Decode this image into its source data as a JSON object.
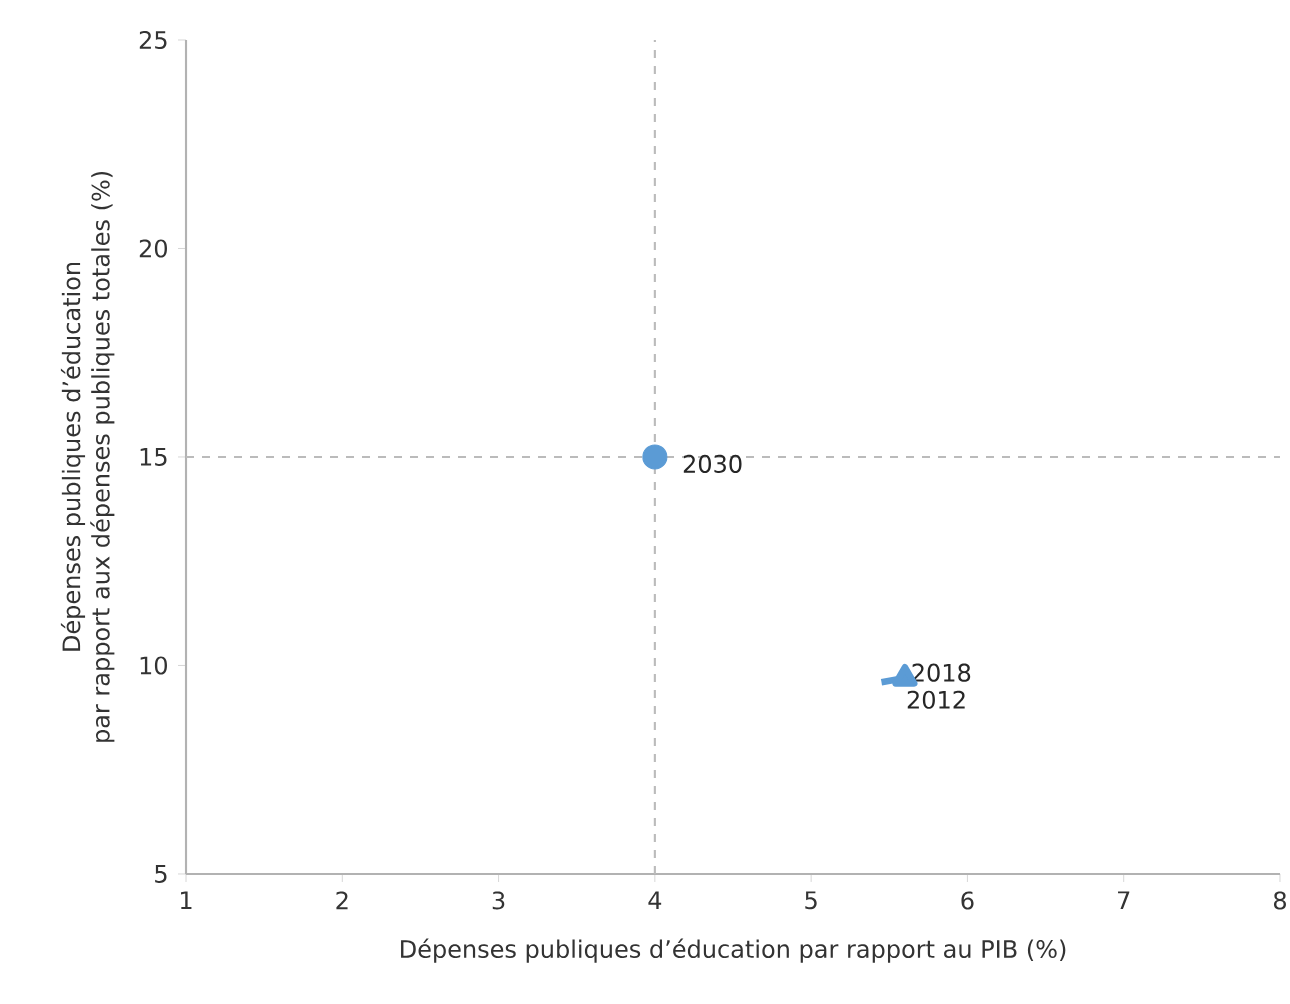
{
  "chart_data": {
    "type": "scatter",
    "xlabel": "Dépenses publiques d’éducation par rapport au PIB (%)",
    "ylabel": "Dépenses publiques d’éducation\npar rapport aux dépenses publiques totales (%)",
    "xlim": [
      1,
      8
    ],
    "ylim": [
      5,
      25
    ],
    "xticks": [
      1,
      2,
      3,
      4,
      5,
      6,
      7,
      8
    ],
    "yticks": [
      5,
      10,
      15,
      20,
      25
    ],
    "series": [
      {
        "type": "line",
        "color": "#5b9bd5",
        "marker": "triangle",
        "x": [
          5.45,
          5.6
        ],
        "values": [
          9.6,
          9.7
        ]
      },
      {
        "color": "#5b9bd5",
        "marker": "circle",
        "x": [
          4
        ],
        "values": [
          15
        ]
      }
    ],
    "ref_lines": [
      {
        "axis": "x",
        "value": 4,
        "color": "#bbbbbb",
        "line_style": "dashed"
      },
      {
        "axis": "y",
        "value": 15,
        "color": "#bbbbbb",
        "line_style": "dashed"
      }
    ],
    "annotations": [
      {
        "text": "2030",
        "x": 4,
        "y": 15
      },
      {
        "text": "2018",
        "x": 5.6,
        "y": 9.7
      },
      {
        "text": "2012",
        "x": 5.45,
        "y": 9.6
      }
    ]
  }
}
